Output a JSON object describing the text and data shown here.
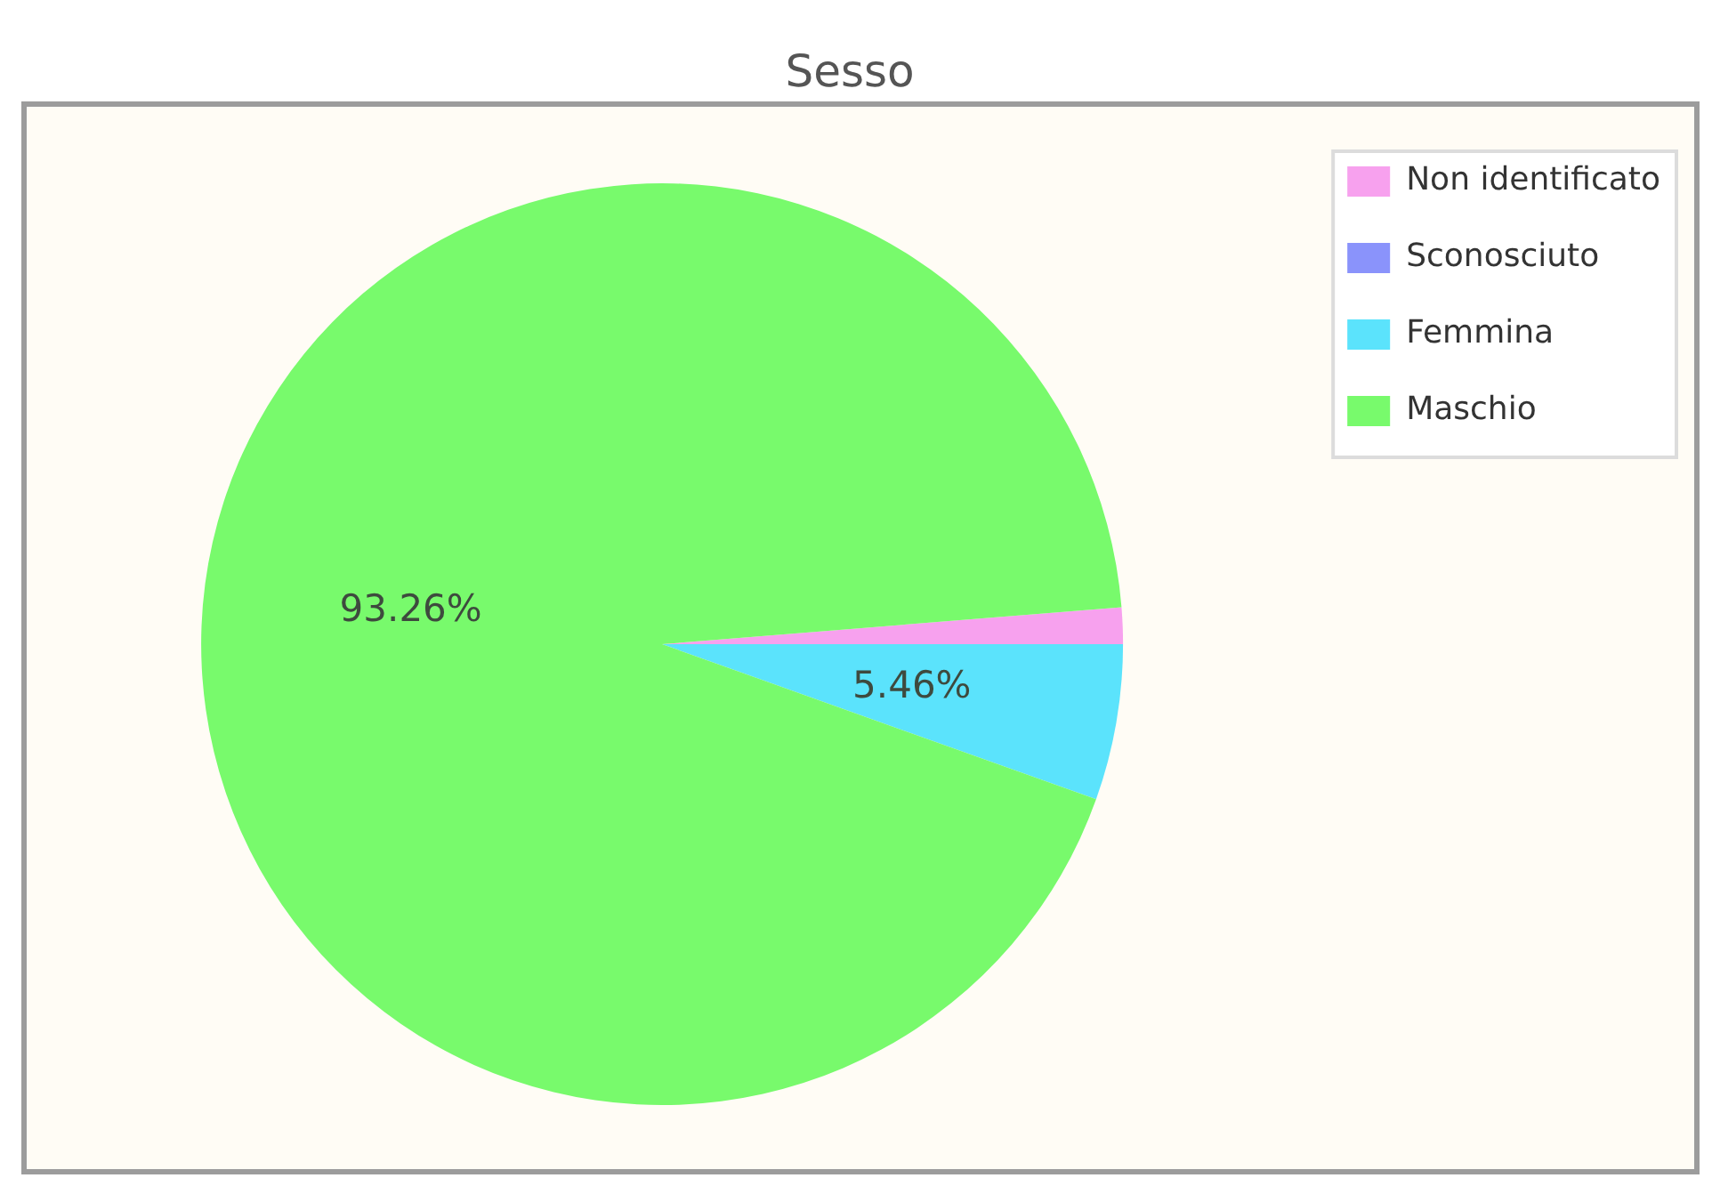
{
  "chart_data": {
    "type": "pie",
    "title": "Sesso",
    "categories": [
      "Non identificato",
      "Sconosciuto",
      "Femmina",
      "Maschio"
    ],
    "values": [
      1.28,
      0,
      5.46,
      93.26
    ],
    "colors": [
      "#f7a1ee",
      "#8a93fb",
      "#5be3fc",
      "#78fa6c"
    ],
    "value_labels": [
      null,
      null,
      "5.46%",
      "93.26%"
    ],
    "legend": "top right"
  }
}
